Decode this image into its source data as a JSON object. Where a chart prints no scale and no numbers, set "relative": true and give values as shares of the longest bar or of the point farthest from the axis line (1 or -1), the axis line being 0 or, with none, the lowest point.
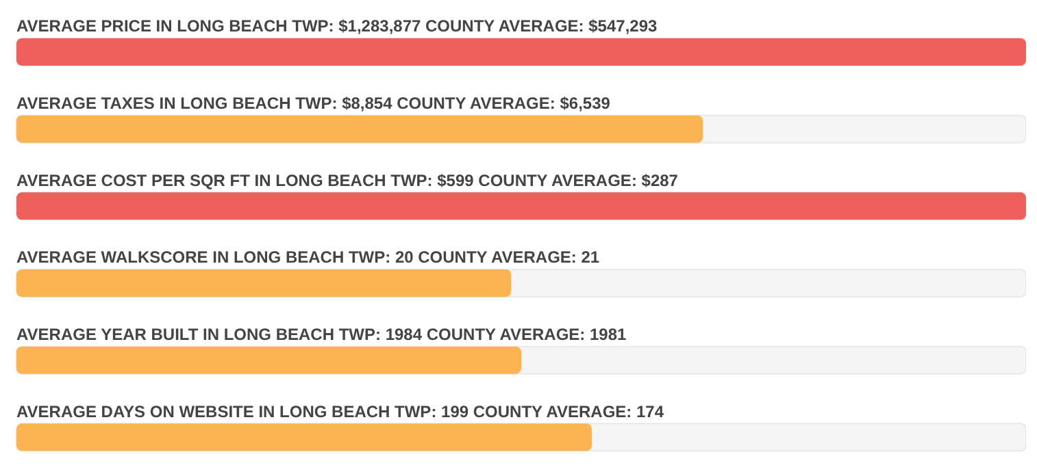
{
  "chart_data": {
    "type": "bar",
    "orientation": "horizontal",
    "relative": true,
    "categories": [
      "AVERAGE PRICE IN LONG BEACH TWP: $1,283,877  COUNTY AVERAGE: $547,293",
      "AVERAGE TAXES IN LONG BEACH TWP: $8,854  COUNTY AVERAGE: $6,539",
      "AVERAGE COST PER SQR FT IN LONG BEACH TWP: $599  COUNTY AVERAGE: $287",
      "AVERAGE WALKSCORE IN LONG BEACH TWP: 20  COUNTY AVERAGE: 21",
      "AVERAGE YEAR BUILT IN LONG BEACH TWP: 1984  COUNTY AVERAGE: 1981",
      "AVERAGE DAYS ON WEBSITE IN LONG BEACH TWP: 199  COUNTY AVERAGE: 174"
    ],
    "values": [
      1,
      0.68,
      1,
      0.49,
      0.5,
      0.57
    ],
    "colors": [
      "#ee5f5b",
      "#fbb450",
      "#ee5f5b",
      "#fbb450",
      "#fbb450",
      "#fbb450"
    ]
  }
}
